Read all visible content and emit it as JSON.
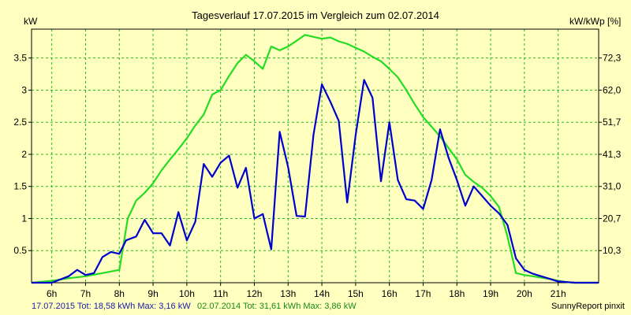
{
  "chart_data": {
    "type": "line",
    "title": "Tagesverlauf 17.07.2015 im Vergleich zum 02.07.2014",
    "ylabel_left": "kW",
    "ylabel_right": "kW/kWp [%]",
    "ylim": [
      0,
      3.95
    ],
    "xlim": [
      5.4,
      22.2
    ],
    "grid": true,
    "x_ticks": [
      6,
      7,
      8,
      9,
      10,
      11,
      12,
      13,
      14,
      15,
      16,
      17,
      18,
      19,
      20,
      21
    ],
    "x_tick_labels": [
      "6h",
      "7h",
      "8h",
      "9h",
      "10h",
      "11h",
      "12h",
      "13h",
      "14h",
      "15h",
      "16h",
      "17h",
      "18h",
      "19h",
      "20h",
      "21h"
    ],
    "y_ticks_left": [
      0.5,
      1,
      1.5,
      2,
      2.5,
      3,
      3.5
    ],
    "y_tick_labels_left": [
      "0.5",
      "1",
      "1.5",
      "2",
      "2.5",
      "3",
      "3.5"
    ],
    "y_ticks_right": [
      0.5,
      1,
      1.5,
      2,
      2.5,
      3,
      3.5
    ],
    "y_tick_labels_right": [
      "10,3",
      "20,7",
      "31,0",
      "41,3",
      "51,7",
      "62,0",
      "72,3"
    ],
    "series": [
      {
        "name": "17.07.2015",
        "color": "#0000cc",
        "x": [
          5.4,
          6.0,
          6.25,
          6.5,
          6.75,
          7.0,
          7.25,
          7.5,
          7.75,
          8.0,
          8.2,
          8.5,
          8.75,
          9.0,
          9.25,
          9.5,
          9.75,
          10.0,
          10.25,
          10.5,
          10.75,
          11.0,
          11.25,
          11.5,
          11.75,
          12.0,
          12.25,
          12.5,
          12.75,
          13.0,
          13.25,
          13.5,
          13.75,
          14.0,
          14.25,
          14.5,
          14.75,
          15.0,
          15.25,
          15.5,
          15.75,
          16.0,
          16.25,
          16.5,
          16.75,
          17.0,
          17.25,
          17.5,
          17.75,
          18.0,
          18.25,
          18.5,
          18.75,
          19.0,
          19.25,
          19.5,
          19.75,
          20.0,
          20.25,
          20.5,
          20.75,
          21.0,
          21.25,
          21.5,
          22.2
        ],
        "y": [
          0,
          0,
          0.05,
          0.1,
          0.2,
          0.12,
          0.15,
          0.4,
          0.48,
          0.45,
          0.66,
          0.72,
          0.98,
          0.77,
          0.77,
          0.58,
          1.1,
          0.66,
          0.95,
          1.85,
          1.65,
          1.87,
          1.98,
          1.48,
          1.79,
          1.0,
          1.07,
          0.52,
          2.35,
          1.8,
          1.04,
          1.03,
          2.3,
          3.09,
          2.82,
          2.52,
          1.25,
          2.3,
          3.16,
          2.88,
          1.58,
          2.5,
          1.6,
          1.3,
          1.28,
          1.15,
          1.6,
          2.39,
          1.95,
          1.6,
          1.2,
          1.5,
          1.35,
          1.2,
          1.08,
          0.9,
          0.38,
          0.2,
          0.14,
          0.1,
          0.06,
          0.02,
          0.01,
          0,
          0
        ]
      },
      {
        "name": "02.07.2014",
        "color": "#22dd22",
        "x": [
          5.4,
          6.0,
          6.5,
          7.0,
          7.5,
          8.0,
          8.25,
          8.5,
          8.75,
          9.0,
          9.25,
          9.5,
          9.75,
          10.0,
          10.25,
          10.5,
          10.75,
          11.0,
          11.25,
          11.5,
          11.75,
          12.0,
          12.25,
          12.5,
          12.75,
          13.0,
          13.25,
          13.5,
          13.75,
          14.0,
          14.25,
          14.5,
          14.75,
          15.0,
          15.25,
          15.5,
          15.75,
          16.0,
          16.25,
          16.5,
          16.75,
          17.0,
          17.25,
          17.5,
          17.75,
          18.0,
          18.25,
          18.5,
          18.75,
          19.0,
          19.25,
          19.5,
          19.75,
          20.0,
          20.25,
          20.5,
          20.75,
          21.0,
          21.25,
          21.5,
          22.2
        ],
        "y": [
          0,
          0.03,
          0.07,
          0.1,
          0.15,
          0.2,
          1.0,
          1.28,
          1.4,
          1.55,
          1.75,
          1.92,
          2.08,
          2.25,
          2.45,
          2.62,
          2.93,
          3.0,
          3.22,
          3.42,
          3.55,
          3.45,
          3.33,
          3.68,
          3.62,
          3.68,
          3.77,
          3.86,
          3.83,
          3.8,
          3.82,
          3.76,
          3.72,
          3.66,
          3.6,
          3.52,
          3.45,
          3.33,
          3.2,
          3.0,
          2.78,
          2.58,
          2.43,
          2.28,
          2.1,
          1.92,
          1.68,
          1.57,
          1.48,
          1.35,
          1.18,
          0.72,
          0.15,
          0.12,
          0.1,
          0.08,
          0.06,
          0.03,
          0.01,
          0,
          0
        ]
      }
    ]
  },
  "footer": {
    "left_blue": "17.07.2015 Tot: 18,58 kWh Max: 3,16 kW",
    "left_green": "02.07.2014 Tot: 31,61 kWh Max: 3,86 kW",
    "right": "SunnyReport pinxit"
  }
}
